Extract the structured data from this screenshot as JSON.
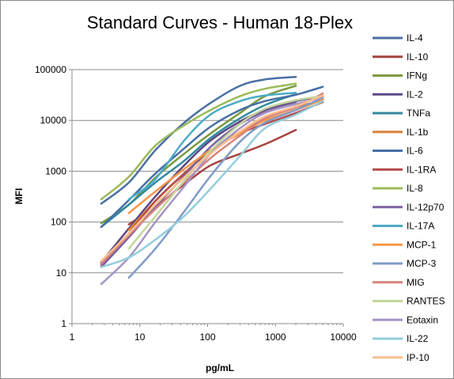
{
  "chart_data": {
    "type": "line",
    "title": "Standard Curves - Human 18-Plex",
    "xlabel": "pg/mL",
    "ylabel": "MFI",
    "xscale": "log",
    "yscale": "log",
    "xlim": [
      1,
      10000
    ],
    "ylim": [
      1,
      100000
    ],
    "x_ticks": [
      "1",
      "10",
      "100",
      "1000",
      "10000"
    ],
    "y_ticks": [
      "1",
      "10",
      "100",
      "1000",
      "10000",
      "100000"
    ],
    "grid": "horizontal",
    "legend_position": "right",
    "series": [
      {
        "name": "IL-4",
        "color": "#4a6fa5",
        "points": [
          [
            2.7,
            230
          ],
          [
            6.9,
            600
          ],
          [
            17,
            2600
          ],
          [
            45,
            9000
          ],
          [
            110,
            22000
          ],
          [
            300,
            48000
          ],
          [
            700,
            64000
          ],
          [
            2000,
            72000
          ]
        ]
      },
      {
        "name": "IL-10",
        "color": "#a5433f",
        "points": [
          [
            6.9,
            90
          ],
          [
            17,
            200
          ],
          [
            45,
            550
          ],
          [
            110,
            1300
          ],
          [
            300,
            2200
          ],
          [
            700,
            3400
          ],
          [
            2000,
            6500
          ]
        ]
      },
      {
        "name": "IFNg",
        "color": "#7a9a3e",
        "points": [
          [
            2.7,
            95
          ],
          [
            6.9,
            220
          ],
          [
            17,
            750
          ],
          [
            45,
            2200
          ],
          [
            110,
            5500
          ],
          [
            300,
            14000
          ],
          [
            700,
            30000
          ],
          [
            2000,
            48000
          ]
        ]
      },
      {
        "name": "IL-2",
        "color": "#5e4883",
        "points": [
          [
            2.7,
            16
          ],
          [
            6.9,
            75
          ],
          [
            17,
            320
          ],
          [
            45,
            1300
          ],
          [
            110,
            4000
          ],
          [
            300,
            9500
          ],
          [
            700,
            16000
          ],
          [
            2000,
            24000
          ],
          [
            5000,
            30000
          ]
        ]
      },
      {
        "name": "TNFa",
        "color": "#318a9e",
        "points": [
          [
            2.7,
            80
          ],
          [
            6.9,
            220
          ],
          [
            17,
            600
          ],
          [
            45,
            1600
          ],
          [
            110,
            4500
          ],
          [
            300,
            11000
          ],
          [
            700,
            20000
          ],
          [
            2000,
            33000
          ]
        ]
      },
      {
        "name": "IL-1b",
        "color": "#d9843a",
        "points": [
          [
            6.9,
            70
          ],
          [
            17,
            260
          ],
          [
            45,
            900
          ],
          [
            110,
            2500
          ],
          [
            300,
            6000
          ],
          [
            700,
            11000
          ],
          [
            2000,
            18000
          ],
          [
            5000,
            25000
          ]
        ]
      },
      {
        "name": "IL-6",
        "color": "#466fa6",
        "points": [
          [
            2.7,
            80
          ],
          [
            6.9,
            270
          ],
          [
            17,
            900
          ],
          [
            45,
            2800
          ],
          [
            110,
            7500
          ],
          [
            300,
            16000
          ],
          [
            700,
            24000
          ],
          [
            2000,
            32000
          ],
          [
            5000,
            46000
          ]
        ]
      },
      {
        "name": "IL-1RA",
        "color": "#b34a46",
        "points": [
          [
            2.7,
            14
          ],
          [
            6.9,
            60
          ],
          [
            17,
            260
          ],
          [
            45,
            900
          ],
          [
            110,
            2500
          ],
          [
            300,
            5500
          ],
          [
            700,
            8500
          ],
          [
            2000,
            14000
          ],
          [
            5000,
            23000
          ]
        ]
      },
      {
        "name": "IL-8",
        "color": "#9bbb59",
        "points": [
          [
            2.7,
            280
          ],
          [
            6.9,
            780
          ],
          [
            17,
            3200
          ],
          [
            45,
            8000
          ],
          [
            110,
            16000
          ],
          [
            300,
            30000
          ],
          [
            700,
            42000
          ],
          [
            2000,
            53000
          ]
        ]
      },
      {
        "name": "IL-12p70",
        "color": "#7b62a0",
        "points": [
          [
            2.7,
            13
          ],
          [
            6.9,
            50
          ],
          [
            17,
            200
          ],
          [
            45,
            800
          ],
          [
            110,
            3000
          ],
          [
            300,
            8500
          ],
          [
            700,
            15000
          ],
          [
            2000,
            22000
          ]
        ]
      },
      {
        "name": "IL-17A",
        "color": "#4bacc6",
        "points": [
          [
            6.9,
            280
          ],
          [
            17,
            700
          ],
          [
            45,
            4000
          ],
          [
            110,
            13000
          ],
          [
            300,
            24000
          ],
          [
            700,
            31000
          ],
          [
            2000,
            35000
          ]
        ]
      },
      {
        "name": "MCP-1",
        "color": "#f79646",
        "points": [
          [
            6.9,
            150
          ],
          [
            17,
            400
          ],
          [
            45,
            1100
          ],
          [
            110,
            2600
          ],
          [
            300,
            5500
          ],
          [
            700,
            10000
          ],
          [
            2000,
            16000
          ],
          [
            5000,
            26000
          ]
        ]
      },
      {
        "name": "MCP-3",
        "color": "#7f9cc8",
        "points": [
          [
            6.9,
            8
          ],
          [
            17,
            30
          ],
          [
            45,
            160
          ],
          [
            110,
            800
          ],
          [
            300,
            3800
          ],
          [
            700,
            9000
          ],
          [
            2000,
            16000
          ],
          [
            5000,
            28000
          ]
        ]
      },
      {
        "name": "MIG",
        "color": "#d6847f",
        "points": [
          [
            2.7,
            15
          ],
          [
            6.9,
            55
          ],
          [
            17,
            180
          ],
          [
            45,
            600
          ],
          [
            110,
            1800
          ],
          [
            300,
            5000
          ],
          [
            700,
            11000
          ],
          [
            2000,
            18000
          ],
          [
            5000,
            34000
          ]
        ]
      },
      {
        "name": "RANTES",
        "color": "#c3d69b",
        "points": [
          [
            6.9,
            30
          ],
          [
            17,
            130
          ],
          [
            45,
            650
          ],
          [
            110,
            2500
          ],
          [
            300,
            8500
          ],
          [
            700,
            17000
          ],
          [
            2000,
            25000
          ],
          [
            5000,
            30000
          ]
        ]
      },
      {
        "name": "Eotaxin",
        "color": "#a694c4",
        "points": [
          [
            2.7,
            6
          ],
          [
            6.9,
            20
          ],
          [
            17,
            100
          ],
          [
            45,
            500
          ],
          [
            110,
            2200
          ],
          [
            300,
            7000
          ],
          [
            700,
            14000
          ],
          [
            2000,
            21000
          ],
          [
            5000,
            28000
          ]
        ]
      },
      {
        "name": "IL-22",
        "color": "#93cddd",
        "points": [
          [
            2.7,
            13
          ],
          [
            6.9,
            20
          ],
          [
            17,
            45
          ],
          [
            45,
            130
          ],
          [
            110,
            450
          ],
          [
            300,
            2000
          ],
          [
            700,
            7000
          ],
          [
            2000,
            13000
          ],
          [
            5000,
            24000
          ]
        ]
      },
      {
        "name": "IP-10",
        "color": "#fabf8f",
        "points": [
          [
            2.7,
            17
          ],
          [
            6.9,
            60
          ],
          [
            17,
            220
          ],
          [
            45,
            750
          ],
          [
            110,
            2200
          ],
          [
            300,
            6000
          ],
          [
            700,
            12000
          ],
          [
            2000,
            19000
          ],
          [
            5000,
            31000
          ]
        ]
      }
    ]
  }
}
